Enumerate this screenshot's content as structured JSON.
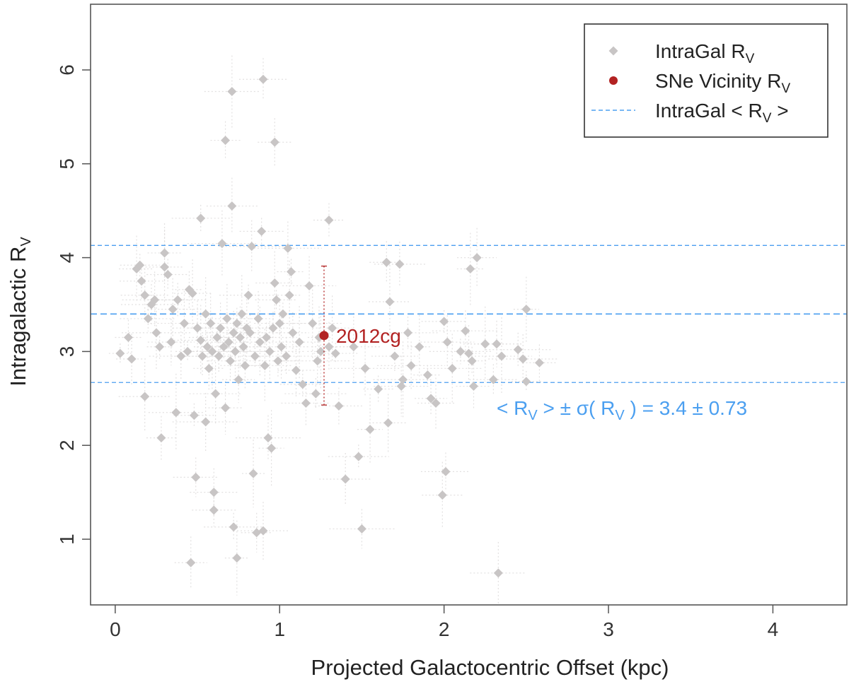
{
  "chart_data": {
    "type": "scatter",
    "title": "",
    "xlabel": "Projected Galactocentric Offset (kpc)",
    "ylabel_main": "Intragalactic R",
    "ylabel_sub": "V",
    "xlim": [
      -0.15,
      4.45
    ],
    "ylim": [
      0.3,
      6.7
    ],
    "xticks": [
      0,
      1,
      2,
      3,
      4
    ],
    "yticks": [
      1,
      2,
      3,
      4,
      5,
      6
    ],
    "xtick_labels": [
      "0",
      "1",
      "2",
      "3",
      "4"
    ],
    "ytick_labels": [
      "1",
      "2",
      "3",
      "4",
      "5",
      "6"
    ],
    "grid": false,
    "legend_position": "top-right",
    "colors": {
      "intragal": "#c8c5c5",
      "intragal_err": "#e2e0e0",
      "sne": "#b22222",
      "mean_line": "#4b9ff0"
    },
    "legend": [
      {
        "name": "IntraGal R",
        "sub": "V",
        "suffix": "",
        "marker": "diamond"
      },
      {
        "name": "SNe Vicinity R",
        "sub": "V",
        "suffix": "",
        "marker": "circle"
      },
      {
        "name": "IntraGal < R",
        "sub": "V",
        "suffix": " >",
        "marker": "dashed-line"
      }
    ],
    "mean_rv": 3.4,
    "sigma_rv": 0.73,
    "hlines": [
      2.67,
      3.4,
      4.13
    ],
    "annotation": {
      "part1": "< R",
      "sub1": "V",
      "part2": " > ± σ( R",
      "sub2": "V",
      "part3": " ) =  3.4 ± 0.73"
    },
    "sne_point": {
      "label": "2012cg",
      "x": 1.27,
      "y": 3.17,
      "ylow": 2.43,
      "yhigh": 3.91
    },
    "series": [
      {
        "name": "IntraGal RV",
        "points": [
          [
            0.03,
            2.98
          ],
          [
            0.08,
            3.15
          ],
          [
            0.1,
            2.92
          ],
          [
            0.13,
            3.88
          ],
          [
            0.15,
            3.92
          ],
          [
            0.16,
            3.75
          ],
          [
            0.18,
            3.6
          ],
          [
            0.18,
            2.52
          ],
          [
            0.2,
            3.35
          ],
          [
            0.22,
            3.5
          ],
          [
            0.24,
            3.55
          ],
          [
            0.25,
            3.2
          ],
          [
            0.27,
            3.05
          ],
          [
            0.28,
            2.08
          ],
          [
            0.3,
            4.05
          ],
          [
            0.3,
            3.9
          ],
          [
            0.32,
            3.82
          ],
          [
            0.34,
            3.1
          ],
          [
            0.35,
            3.45
          ],
          [
            0.37,
            2.35
          ],
          [
            0.38,
            3.55
          ],
          [
            0.4,
            2.95
          ],
          [
            0.42,
            3.3
          ],
          [
            0.44,
            3.0
          ],
          [
            0.45,
            3.66
          ],
          [
            0.46,
            0.75
          ],
          [
            0.47,
            3.62
          ],
          [
            0.48,
            2.32
          ],
          [
            0.49,
            1.66
          ],
          [
            0.5,
            3.25
          ],
          [
            0.52,
            3.12
          ],
          [
            0.52,
            4.42
          ],
          [
            0.53,
            2.95
          ],
          [
            0.55,
            2.25
          ],
          [
            0.55,
            3.4
          ],
          [
            0.56,
            3.05
          ],
          [
            0.57,
            2.82
          ],
          [
            0.58,
            3.3
          ],
          [
            0.59,
            3.0
          ],
          [
            0.6,
            1.31
          ],
          [
            0.6,
            1.5
          ],
          [
            0.61,
            2.55
          ],
          [
            0.62,
            3.15
          ],
          [
            0.63,
            2.95
          ],
          [
            0.64,
            3.25
          ],
          [
            0.65,
            4.15
          ],
          [
            0.66,
            3.05
          ],
          [
            0.67,
            5.25
          ],
          [
            0.67,
            2.4
          ],
          [
            0.68,
            3.35
          ],
          [
            0.69,
            3.1
          ],
          [
            0.7,
            2.9
          ],
          [
            0.71,
            4.55
          ],
          [
            0.71,
            5.77
          ],
          [
            0.72,
            1.13
          ],
          [
            0.72,
            3.2
          ],
          [
            0.73,
            3.0
          ],
          [
            0.74,
            0.8
          ],
          [
            0.74,
            3.3
          ],
          [
            0.75,
            2.7
          ],
          [
            0.76,
            3.15
          ],
          [
            0.77,
            3.4
          ],
          [
            0.78,
            3.05
          ],
          [
            0.79,
            2.85
          ],
          [
            0.8,
            3.25
          ],
          [
            0.81,
            3.6
          ],
          [
            0.82,
            3.2
          ],
          [
            0.83,
            4.12
          ],
          [
            0.84,
            1.7
          ],
          [
            0.85,
            2.95
          ],
          [
            0.86,
            1.07
          ],
          [
            0.87,
            3.35
          ],
          [
            0.88,
            3.1
          ],
          [
            0.89,
            4.28
          ],
          [
            0.9,
            5.9
          ],
          [
            0.9,
            1.09
          ],
          [
            0.91,
            2.85
          ],
          [
            0.92,
            3.15
          ],
          [
            0.93,
            2.08
          ],
          [
            0.94,
            3.0
          ],
          [
            0.95,
            1.97
          ],
          [
            0.96,
            3.25
          ],
          [
            0.97,
            5.23
          ],
          [
            0.97,
            3.73
          ],
          [
            0.98,
            3.55
          ],
          [
            0.99,
            2.9
          ],
          [
            1.0,
            3.3
          ],
          [
            1.01,
            3.05
          ],
          [
            1.02,
            3.4
          ],
          [
            1.04,
            2.95
          ],
          [
            1.05,
            4.1
          ],
          [
            1.06,
            3.6
          ],
          [
            1.07,
            3.85
          ],
          [
            1.08,
            3.2
          ],
          [
            1.1,
            2.8
          ],
          [
            1.12,
            3.1
          ],
          [
            1.14,
            2.65
          ],
          [
            1.16,
            2.45
          ],
          [
            1.18,
            3.7
          ],
          [
            1.2,
            3.3
          ],
          [
            1.22,
            2.55
          ],
          [
            1.23,
            2.9
          ],
          [
            1.24,
            3.15
          ],
          [
            1.25,
            3.0
          ],
          [
            1.3,
            4.4
          ],
          [
            1.3,
            3.05
          ],
          [
            1.32,
            3.25
          ],
          [
            1.34,
            2.98
          ],
          [
            1.36,
            2.42
          ],
          [
            1.4,
            1.64
          ],
          [
            1.45,
            3.05
          ],
          [
            1.48,
            1.88
          ],
          [
            1.5,
            1.11
          ],
          [
            1.52,
            2.82
          ],
          [
            1.55,
            2.17
          ],
          [
            1.6,
            2.6
          ],
          [
            1.65,
            3.95
          ],
          [
            1.66,
            2.24
          ],
          [
            1.67,
            3.53
          ],
          [
            1.7,
            2.95
          ],
          [
            1.73,
            3.93
          ],
          [
            1.74,
            2.63
          ],
          [
            1.75,
            2.7
          ],
          [
            1.78,
            3.2
          ],
          [
            1.8,
            2.85
          ],
          [
            1.85,
            3.05
          ],
          [
            1.9,
            2.75
          ],
          [
            1.92,
            2.5
          ],
          [
            1.95,
            2.45
          ],
          [
            1.99,
            1.47
          ],
          [
            2.0,
            3.32
          ],
          [
            2.01,
            1.72
          ],
          [
            2.02,
            3.1
          ],
          [
            2.05,
            2.82
          ],
          [
            2.1,
            3.0
          ],
          [
            2.13,
            3.22
          ],
          [
            2.15,
            2.98
          ],
          [
            2.16,
            3.88
          ],
          [
            2.17,
            2.9
          ],
          [
            2.18,
            2.63
          ],
          [
            2.2,
            4.0
          ],
          [
            2.25,
            3.08
          ],
          [
            2.3,
            2.7
          ],
          [
            2.32,
            3.08
          ],
          [
            2.33,
            0.64
          ],
          [
            2.35,
            2.95
          ],
          [
            2.45,
            3.02
          ],
          [
            2.48,
            2.92
          ],
          [
            2.5,
            3.45
          ],
          [
            2.5,
            2.68
          ],
          [
            2.58,
            2.88
          ]
        ]
      }
    ]
  }
}
